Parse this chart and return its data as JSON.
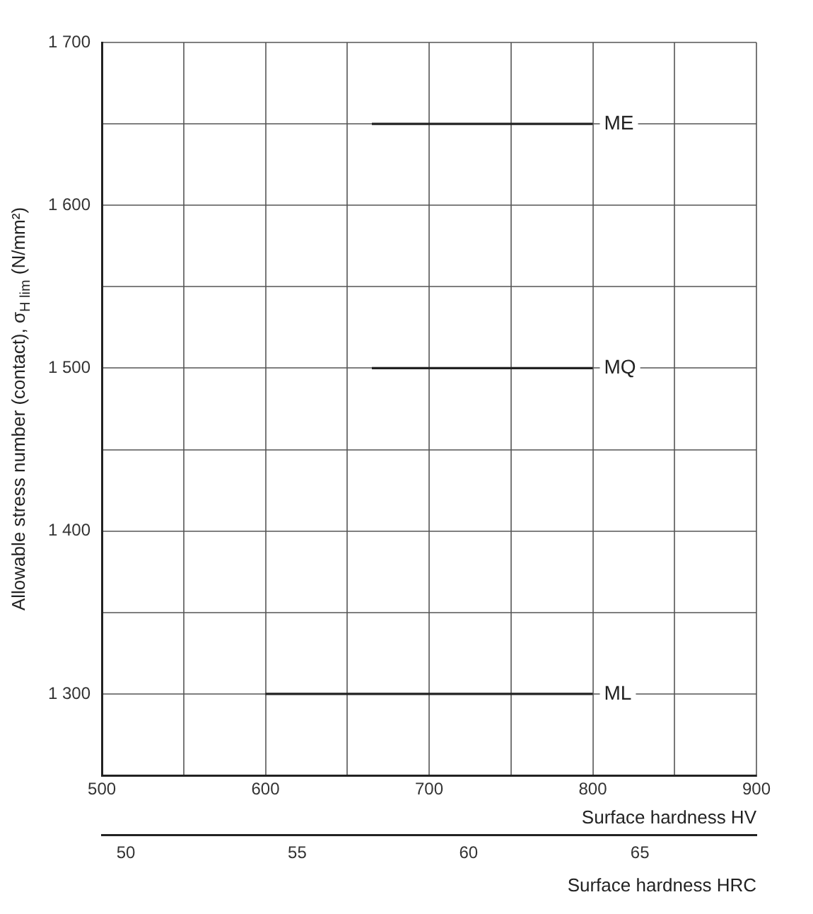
{
  "chart_data": {
    "type": "line",
    "xlabel": "Surface hardness HV",
    "ylabel": "Allowable stress number (contact), σ$_{H lim}$ (N/mm²)",
    "x2label": "Surface hardness HRC",
    "series": [
      {
        "name": "ME",
        "color": "#222222",
        "x": [
          665,
          800
        ],
        "values": [
          1650,
          1650
        ]
      },
      {
        "name": "MQ",
        "color": "#222222",
        "x": [
          665,
          800
        ],
        "values": [
          1500,
          1500
        ]
      },
      {
        "name": "ML",
        "color": "#222222",
        "x": [
          600,
          800
        ],
        "values": [
          1300,
          1300
        ]
      }
    ],
    "xlim": [
      500,
      900
    ],
    "ylim": [
      1250,
      1700
    ],
    "xticks": [
      500,
      {
        "value": 550,
        "label": null
      },
      600,
      {
        "value": 650,
        "label": null
      },
      700,
      {
        "value": 750,
        "label": null
      },
      800,
      {
        "value": 850,
        "label": null
      },
      900
    ],
    "yticks": [
      {
        "value": 1300,
        "label": "1 300"
      },
      {
        "value": 1350,
        "label": null
      },
      {
        "value": 1400,
        "label": "1 400"
      },
      {
        "value": 1450,
        "label": null
      },
      {
        "value": 1500,
        "label": "1 500"
      },
      {
        "value": 1550,
        "label": null
      },
      {
        "value": 1600,
        "label": "1 600"
      },
      {
        "value": 1650,
        "label": null
      },
      {
        "value": 1700,
        "label": "1 700"
      }
    ],
    "x2lim": [
      49.3,
      68.4
    ],
    "x2ticks": [
      50,
      55,
      60,
      65
    ],
    "grid": true,
    "legend": false,
    "marker": "none",
    "line_style": "solid"
  }
}
